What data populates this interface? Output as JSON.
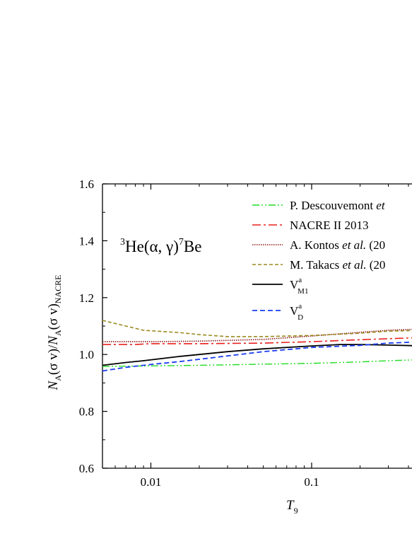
{
  "chart_data": {
    "type": "line",
    "xscale": "log",
    "xlim": [
      0.005,
      0.5
    ],
    "ylim": [
      0.6,
      1.6
    ],
    "grid": false,
    "legend_position": "top-right",
    "annotation": {
      "sup_a": "3",
      "base_a": "He(α, γ)",
      "sup_b": "7",
      "base_b": "Be"
    },
    "xlabel": {
      "main": "T",
      "sub": "9"
    },
    "ylabel": {
      "n1": "N",
      "s1": "A",
      "m1": "(σ v)/",
      "n2": "N",
      "s2": "A",
      "m2": "(σ v)",
      "s3": "NACRE"
    },
    "x_ticks": [
      {
        "value": 0.01,
        "label": "0.01"
      },
      {
        "value": 0.1,
        "label": "0.1"
      }
    ],
    "y_ticks": [
      {
        "value": 0.6,
        "label": "0.6"
      },
      {
        "value": 0.8,
        "label": "0.8"
      },
      {
        "value": 1.0,
        "label": "1.0"
      },
      {
        "value": 1.2,
        "label": "1.2"
      },
      {
        "value": 1.4,
        "label": "1.4"
      },
      {
        "value": 1.6,
        "label": "1.6"
      }
    ],
    "series": [
      {
        "key": "descouvemont",
        "legend": {
          "pre": "P. Descouvemont ",
          "ital": "et",
          "post": ""
        },
        "color": "#22dd22",
        "dash": "10,3,2,3,2,3",
        "width": 1.4,
        "x": [
          0.005,
          0.01,
          0.02,
          0.05,
          0.1,
          0.2,
          0.3,
          0.5
        ],
        "y": [
          0.958,
          0.96,
          0.962,
          0.966,
          0.969,
          0.974,
          0.978,
          0.982
        ]
      },
      {
        "key": "nacre2",
        "legend": {
          "pre": "NACRE II 2013",
          "ital": "",
          "post": ""
        },
        "color": "#e8201e",
        "dash": "12,4,3,4",
        "width": 1.6,
        "x": [
          0.005,
          0.008,
          0.01,
          0.02,
          0.05,
          0.1,
          0.2,
          0.5
        ],
        "y": [
          1.035,
          1.035,
          1.038,
          1.038,
          1.04,
          1.045,
          1.052,
          1.06
        ]
      },
      {
        "key": "kontos",
        "legend": {
          "pre": "A. Kontos ",
          "ital": "et al.",
          "post": " (20"
        },
        "color": "#8b1a1a",
        "dash": "1.5,1.5",
        "width": 1.6,
        "x": [
          0.005,
          0.01,
          0.02,
          0.05,
          0.1,
          0.2,
          0.3,
          0.5
        ],
        "y": [
          1.045,
          1.045,
          1.047,
          1.053,
          1.065,
          1.078,
          1.085,
          1.09
        ]
      },
      {
        "key": "takacs",
        "legend": {
          "pre": "M. Takacs ",
          "ital": "et al.",
          "post": " (20"
        },
        "color": "#9a8a1e",
        "dash": "5,3",
        "width": 1.6,
        "x": [
          0.005,
          0.007,
          0.009,
          0.015,
          0.02,
          0.03,
          0.05,
          0.1,
          0.2,
          0.3,
          0.5
        ],
        "y": [
          1.12,
          1.1,
          1.085,
          1.077,
          1.07,
          1.063,
          1.063,
          1.067,
          1.075,
          1.082,
          1.085
        ]
      },
      {
        "key": "vm1",
        "legend": {
          "pre": "V",
          "ital": "",
          "post": "",
          "sup": "a",
          "sub": "M1"
        },
        "color": "#000000",
        "dash": "",
        "width": 1.8,
        "x": [
          0.005,
          0.007,
          0.009,
          0.015,
          0.02,
          0.03,
          0.05,
          0.1,
          0.15,
          0.2,
          0.3,
          0.5
        ],
        "y": [
          0.962,
          0.972,
          0.978,
          0.993,
          1.0,
          1.01,
          1.02,
          1.03,
          1.035,
          1.035,
          1.033,
          1.03
        ]
      },
      {
        "key": "vd",
        "legend": {
          "pre": "V",
          "ital": "",
          "post": "",
          "sup": "a",
          "sub": "D"
        },
        "color": "#1a3cf0",
        "dash": "7,4",
        "width": 1.8,
        "x": [
          0.005,
          0.007,
          0.01,
          0.015,
          0.02,
          0.03,
          0.05,
          0.1,
          0.2,
          0.3,
          0.5
        ],
        "y": [
          0.942,
          0.955,
          0.965,
          0.975,
          0.983,
          0.995,
          1.01,
          1.025,
          1.032,
          1.04,
          1.045
        ]
      }
    ]
  }
}
